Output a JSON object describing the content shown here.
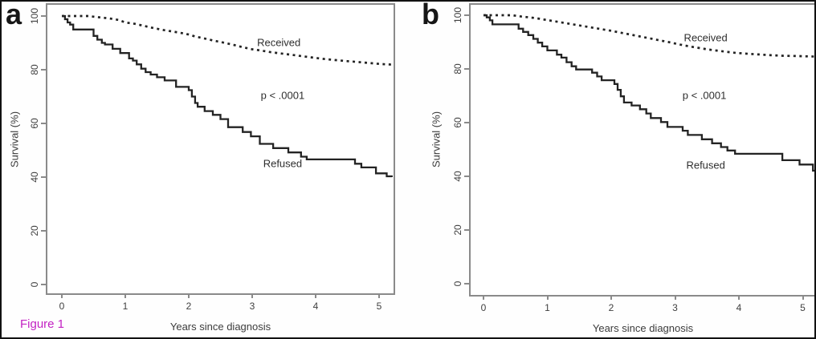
{
  "figure_label": "Figure 1",
  "colors": {
    "curve": "#232323",
    "axis": "#8a8a8a",
    "tick_text": "#3f3f3f",
    "figure_label": "#c322c3",
    "background": "#ffffff",
    "outer_border": "#111111"
  },
  "chart_data": [
    {
      "type": "line",
      "panel_label": "a",
      "title": "",
      "xlabel": "Years since diagnosis",
      "ylabel": "Survival (%)",
      "xlim": [
        0,
        5.2
      ],
      "ylim": [
        0,
        100
      ],
      "xticks": [
        0,
        1,
        2,
        3,
        4,
        5
      ],
      "yticks": [
        0,
        20,
        40,
        60,
        80,
        100
      ],
      "grid": false,
      "legend_position": "inline-annotations",
      "annotations": [
        {
          "text": "Received",
          "x": 3.42,
          "y": 90.2
        },
        {
          "text": "p < .0001",
          "x": 3.48,
          "y": 70.5
        },
        {
          "text": "Refused",
          "x": 3.48,
          "y": 45.2
        }
      ],
      "series": [
        {
          "name": "Received",
          "style": "dashed",
          "step": false,
          "points": [
            [
              0,
              100
            ],
            [
              0.42,
              100
            ],
            [
              0.55,
              99.6
            ],
            [
              0.75,
              99.1
            ],
            [
              0.9,
              98.5
            ],
            [
              1.0,
              97.6
            ],
            [
              1.15,
              97.1
            ],
            [
              1.3,
              96.3
            ],
            [
              1.45,
              95.5
            ],
            [
              1.6,
              94.8
            ],
            [
              1.75,
              94.2
            ],
            [
              1.9,
              93.6
            ],
            [
              2.0,
              93.1
            ],
            [
              2.1,
              92.4
            ],
            [
              2.25,
              91.6
            ],
            [
              2.4,
              90.8
            ],
            [
              2.55,
              90.1
            ],
            [
              2.7,
              89.3
            ],
            [
              2.85,
              88.4
            ],
            [
              3.0,
              87.6
            ],
            [
              3.15,
              87.1
            ],
            [
              3.3,
              86.5
            ],
            [
              3.5,
              85.9
            ],
            [
              3.7,
              85.3
            ],
            [
              3.9,
              84.7
            ],
            [
              4.1,
              84.1
            ],
            [
              4.3,
              83.6
            ],
            [
              4.5,
              83.2
            ],
            [
              4.7,
              82.8
            ],
            [
              4.9,
              82.4
            ],
            [
              5.05,
              82.1
            ],
            [
              5.2,
              81.9
            ]
          ]
        },
        {
          "name": "Refused",
          "style": "solid",
          "step": true,
          "points": [
            [
              0,
              100
            ],
            [
              0.05,
              98.8
            ],
            [
              0.09,
              97.6
            ],
            [
              0.13,
              96.8
            ],
            [
              0.18,
              95
            ],
            [
              0.5,
              92.6
            ],
            [
              0.56,
              91.2
            ],
            [
              0.63,
              90
            ],
            [
              0.68,
              89.4
            ],
            [
              0.8,
              87.8
            ],
            [
              0.92,
              86.2
            ],
            [
              1.06,
              84.2
            ],
            [
              1.12,
              83.4
            ],
            [
              1.18,
              82
            ],
            [
              1.25,
              80.4
            ],
            [
              1.32,
              79.1
            ],
            [
              1.4,
              78.2
            ],
            [
              1.5,
              77.2
            ],
            [
              1.62,
              76
            ],
            [
              1.8,
              73.6
            ],
            [
              2.0,
              72.4
            ],
            [
              2.05,
              70
            ],
            [
              2.1,
              67.6
            ],
            [
              2.14,
              66.2
            ],
            [
              2.25,
              64.6
            ],
            [
              2.38,
              63.2
            ],
            [
              2.5,
              61.6
            ],
            [
              2.62,
              58.6
            ],
            [
              2.85,
              56.8
            ],
            [
              2.98,
              55.2
            ],
            [
              3.12,
              52.4
            ],
            [
              3.33,
              50.8
            ],
            [
              3.57,
              49.2
            ],
            [
              3.77,
              47.6
            ],
            [
              3.86,
              46.6
            ],
            [
              4.62,
              45
            ],
            [
              4.72,
              43.6
            ],
            [
              4.95,
              41.4
            ],
            [
              5.12,
              40.3
            ],
            [
              5.2,
              40
            ]
          ]
        }
      ]
    },
    {
      "type": "line",
      "panel_label": "b",
      "title": "",
      "xlabel": "Years since diagnosis",
      "ylabel": "Survival (%)",
      "xlim": [
        0,
        5.2
      ],
      "ylim": [
        0,
        100
      ],
      "xticks": [
        0,
        1,
        2,
        3,
        4,
        5
      ],
      "yticks": [
        0,
        20,
        40,
        60,
        80,
        100
      ],
      "grid": false,
      "legend_position": "inline-annotations",
      "annotations": [
        {
          "text": "Received",
          "x": 3.48,
          "y": 91.6
        },
        {
          "text": "p < .0001",
          "x": 3.46,
          "y": 70.1
        },
        {
          "text": "Refused",
          "x": 3.48,
          "y": 44.2
        }
      ],
      "series": [
        {
          "name": "Received",
          "style": "dashed",
          "step": false,
          "points": [
            [
              0,
              100
            ],
            [
              0.45,
              100
            ],
            [
              0.6,
              99.5
            ],
            [
              0.8,
              99
            ],
            [
              0.95,
              98.4
            ],
            [
              1.1,
              97.8
            ],
            [
              1.25,
              97.2
            ],
            [
              1.4,
              96.6
            ],
            [
              1.55,
              96
            ],
            [
              1.7,
              95.4
            ],
            [
              1.85,
              94.8
            ],
            [
              2.0,
              94.2
            ],
            [
              2.15,
              93.5
            ],
            [
              2.3,
              92.8
            ],
            [
              2.45,
              92.1
            ],
            [
              2.6,
              91.4
            ],
            [
              2.75,
              90.7
            ],
            [
              2.9,
              90
            ],
            [
              3.05,
              89.2
            ],
            [
              3.2,
              88.5
            ],
            [
              3.35,
              87.9
            ],
            [
              3.5,
              87.3
            ],
            [
              3.7,
              86.7
            ],
            [
              3.9,
              86.1
            ],
            [
              4.1,
              85.7
            ],
            [
              4.3,
              85.4
            ],
            [
              4.5,
              85.1
            ],
            [
              4.7,
              84.9
            ],
            [
              4.9,
              84.8
            ],
            [
              5.2,
              84.6
            ]
          ]
        },
        {
          "name": "Refused",
          "style": "solid",
          "step": true,
          "points": [
            [
              0,
              100
            ],
            [
              0.05,
              99.2
            ],
            [
              0.1,
              98.1
            ],
            [
              0.14,
              96.6
            ],
            [
              0.55,
              95
            ],
            [
              0.62,
              93.8
            ],
            [
              0.7,
              92.6
            ],
            [
              0.78,
              91.2
            ],
            [
              0.85,
              89.8
            ],
            [
              0.92,
              88.4
            ],
            [
              1.0,
              86.9
            ],
            [
              1.15,
              85.3
            ],
            [
              1.22,
              84.2
            ],
            [
              1.3,
              82.5
            ],
            [
              1.38,
              81
            ],
            [
              1.45,
              79.8
            ],
            [
              1.7,
              78.6
            ],
            [
              1.78,
              77.2
            ],
            [
              1.85,
              75.8
            ],
            [
              2.05,
              74.4
            ],
            [
              2.1,
              72.2
            ],
            [
              2.15,
              69.8
            ],
            [
              2.2,
              67.5
            ],
            [
              2.32,
              66.4
            ],
            [
              2.45,
              65
            ],
            [
              2.55,
              63.4
            ],
            [
              2.62,
              61.7
            ],
            [
              2.78,
              60.2
            ],
            [
              2.88,
              58.4
            ],
            [
              3.12,
              57
            ],
            [
              3.2,
              55.4
            ],
            [
              3.42,
              53.8
            ],
            [
              3.58,
              52.3
            ],
            [
              3.72,
              50.9
            ],
            [
              3.82,
              49.6
            ],
            [
              3.94,
              48.4
            ],
            [
              4.68,
              46
            ],
            [
              4.95,
              44.4
            ],
            [
              5.16,
              42.1
            ],
            [
              5.2,
              41.8
            ]
          ]
        }
      ]
    }
  ]
}
